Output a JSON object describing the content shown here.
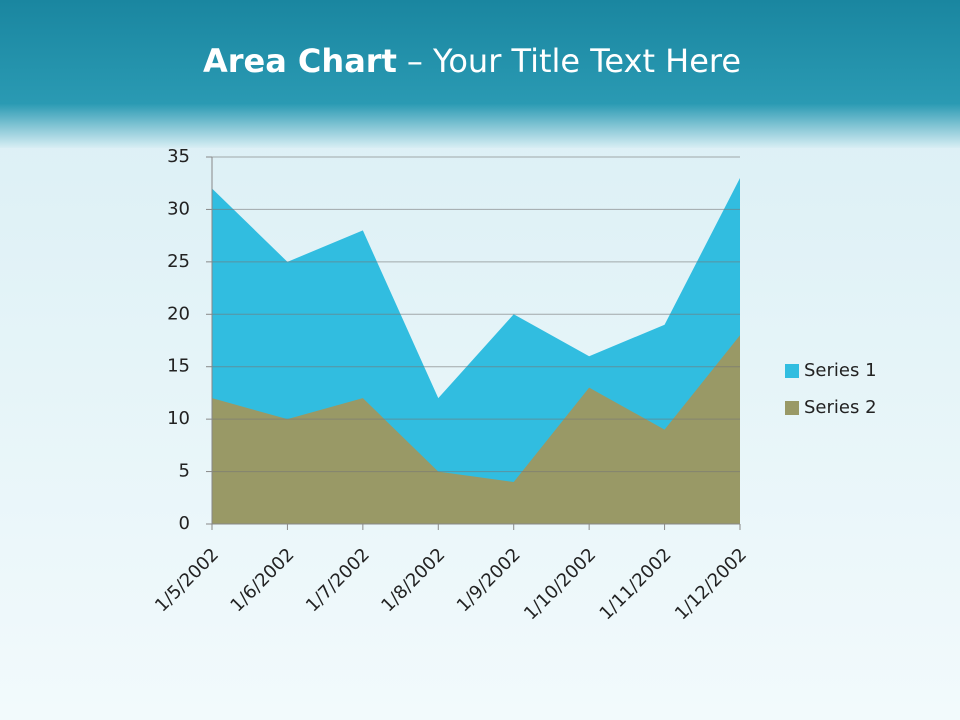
{
  "chart_data": {
    "type": "area",
    "title_bold": "Area Chart",
    "title_rest": "– Your Title Text Here",
    "categories": [
      "1/5/2002",
      "1/6/2002",
      "1/7/2002",
      "1/8/2002",
      "1/9/2002",
      "1/10/2002",
      "1/11/2002",
      "1/12/2002"
    ],
    "series": [
      {
        "name": "Series 1",
        "color": "#31bde0",
        "values": [
          32,
          25,
          28,
          12,
          20,
          16,
          19,
          33
        ]
      },
      {
        "name": "Series 2",
        "color": "#999966",
        "values": [
          12,
          10,
          12,
          5,
          4,
          13,
          9,
          18
        ]
      }
    ],
    "ylim": [
      0,
      35
    ],
    "yticks": [
      0,
      5,
      10,
      15,
      20,
      25,
      30,
      35
    ],
    "grid": true,
    "legend": "right"
  }
}
